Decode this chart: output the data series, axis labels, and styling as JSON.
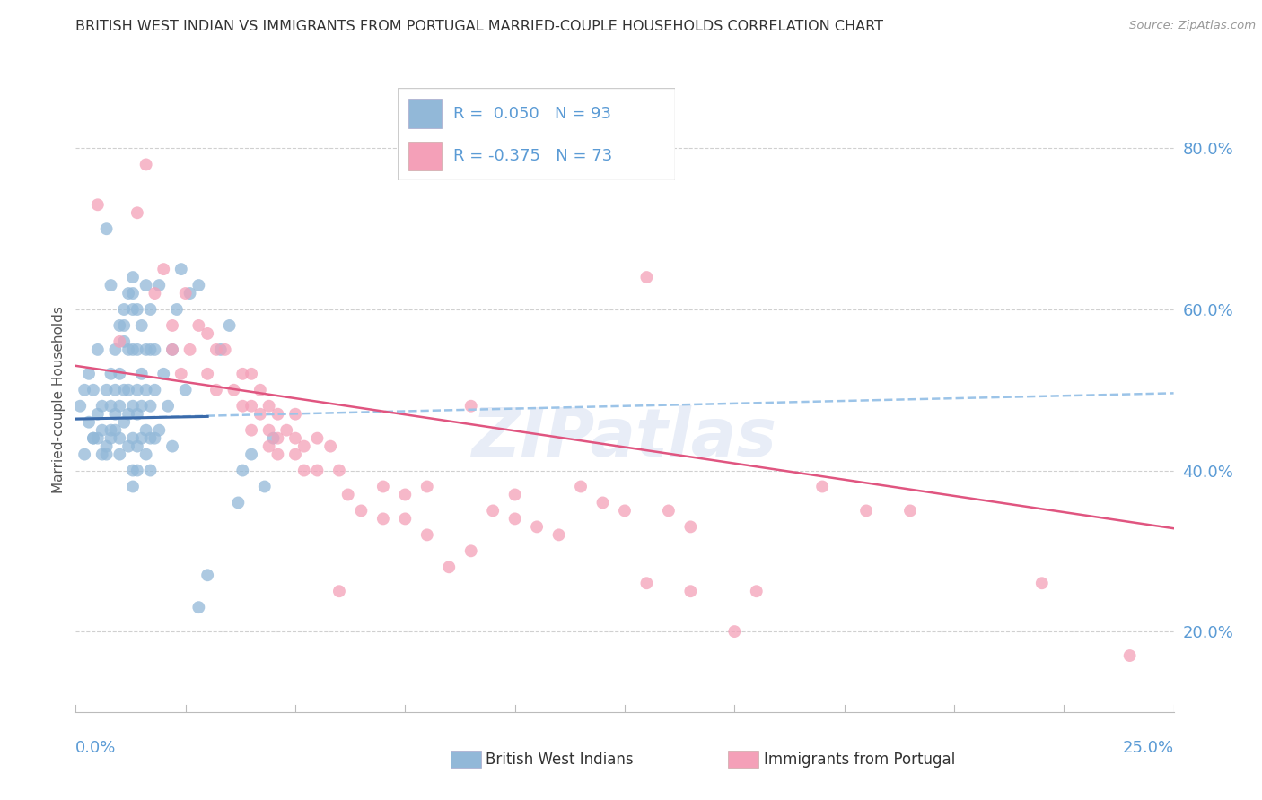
{
  "title": "BRITISH WEST INDIAN VS IMMIGRANTS FROM PORTUGAL MARRIED-COUPLE HOUSEHOLDS CORRELATION CHART",
  "source": "Source: ZipAtlas.com",
  "ylabel": "Married-couple Households",
  "ytick_values": [
    0.2,
    0.4,
    0.6,
    0.8
  ],
  "xmin": 0.0,
  "xmax": 0.25,
  "ymin": 0.1,
  "ymax": 0.875,
  "blue_color": "#92b8d8",
  "pink_color": "#f4a0b8",
  "blue_line_color": "#3a6aaa",
  "pink_line_color": "#e05580",
  "dashed_line_color": "#9cc4e8",
  "axis_label_color": "#5b9bd5",
  "title_color": "#333333",
  "watermark": "ZIPatlas",
  "blue_scatter": [
    [
      0.001,
      0.48
    ],
    [
      0.002,
      0.5
    ],
    [
      0.002,
      0.42
    ],
    [
      0.003,
      0.52
    ],
    [
      0.003,
      0.46
    ],
    [
      0.004,
      0.44
    ],
    [
      0.004,
      0.5
    ],
    [
      0.004,
      0.44
    ],
    [
      0.005,
      0.47
    ],
    [
      0.005,
      0.44
    ],
    [
      0.005,
      0.55
    ],
    [
      0.006,
      0.48
    ],
    [
      0.006,
      0.42
    ],
    [
      0.006,
      0.45
    ],
    [
      0.007,
      0.7
    ],
    [
      0.007,
      0.43
    ],
    [
      0.007,
      0.42
    ],
    [
      0.007,
      0.5
    ],
    [
      0.008,
      0.63
    ],
    [
      0.008,
      0.52
    ],
    [
      0.008,
      0.48
    ],
    [
      0.008,
      0.45
    ],
    [
      0.008,
      0.44
    ],
    [
      0.009,
      0.55
    ],
    [
      0.009,
      0.5
    ],
    [
      0.009,
      0.47
    ],
    [
      0.009,
      0.45
    ],
    [
      0.01,
      0.58
    ],
    [
      0.01,
      0.52
    ],
    [
      0.01,
      0.48
    ],
    [
      0.01,
      0.44
    ],
    [
      0.01,
      0.42
    ],
    [
      0.011,
      0.6
    ],
    [
      0.011,
      0.58
    ],
    [
      0.011,
      0.56
    ],
    [
      0.011,
      0.5
    ],
    [
      0.011,
      0.46
    ],
    [
      0.012,
      0.62
    ],
    [
      0.012,
      0.55
    ],
    [
      0.012,
      0.5
    ],
    [
      0.012,
      0.47
    ],
    [
      0.012,
      0.43
    ],
    [
      0.013,
      0.64
    ],
    [
      0.013,
      0.62
    ],
    [
      0.013,
      0.6
    ],
    [
      0.013,
      0.55
    ],
    [
      0.013,
      0.48
    ],
    [
      0.013,
      0.44
    ],
    [
      0.013,
      0.4
    ],
    [
      0.013,
      0.38
    ],
    [
      0.014,
      0.6
    ],
    [
      0.014,
      0.55
    ],
    [
      0.014,
      0.5
    ],
    [
      0.014,
      0.47
    ],
    [
      0.014,
      0.43
    ],
    [
      0.014,
      0.4
    ],
    [
      0.015,
      0.58
    ],
    [
      0.015,
      0.52
    ],
    [
      0.015,
      0.48
    ],
    [
      0.015,
      0.44
    ],
    [
      0.016,
      0.63
    ],
    [
      0.016,
      0.55
    ],
    [
      0.016,
      0.5
    ],
    [
      0.016,
      0.45
    ],
    [
      0.016,
      0.42
    ],
    [
      0.017,
      0.6
    ],
    [
      0.017,
      0.55
    ],
    [
      0.017,
      0.48
    ],
    [
      0.017,
      0.44
    ],
    [
      0.017,
      0.4
    ],
    [
      0.018,
      0.55
    ],
    [
      0.018,
      0.5
    ],
    [
      0.018,
      0.44
    ],
    [
      0.019,
      0.63
    ],
    [
      0.019,
      0.45
    ],
    [
      0.02,
      0.52
    ],
    [
      0.021,
      0.48
    ],
    [
      0.022,
      0.43
    ],
    [
      0.022,
      0.55
    ],
    [
      0.023,
      0.6
    ],
    [
      0.024,
      0.65
    ],
    [
      0.025,
      0.5
    ],
    [
      0.026,
      0.62
    ],
    [
      0.028,
      0.63
    ],
    [
      0.03,
      0.27
    ],
    [
      0.033,
      0.55
    ],
    [
      0.035,
      0.58
    ],
    [
      0.037,
      0.36
    ],
    [
      0.038,
      0.4
    ],
    [
      0.04,
      0.42
    ],
    [
      0.043,
      0.38
    ],
    [
      0.045,
      0.44
    ],
    [
      0.028,
      0.23
    ]
  ],
  "pink_scatter": [
    [
      0.005,
      0.73
    ],
    [
      0.01,
      0.56
    ],
    [
      0.014,
      0.72
    ],
    [
      0.018,
      0.62
    ],
    [
      0.02,
      0.65
    ],
    [
      0.022,
      0.58
    ],
    [
      0.022,
      0.55
    ],
    [
      0.024,
      0.52
    ],
    [
      0.026,
      0.55
    ],
    [
      0.028,
      0.58
    ],
    [
      0.03,
      0.57
    ],
    [
      0.03,
      0.52
    ],
    [
      0.032,
      0.55
    ],
    [
      0.032,
      0.5
    ],
    [
      0.034,
      0.55
    ],
    [
      0.036,
      0.5
    ],
    [
      0.038,
      0.52
    ],
    [
      0.038,
      0.48
    ],
    [
      0.04,
      0.52
    ],
    [
      0.04,
      0.48
    ],
    [
      0.04,
      0.45
    ],
    [
      0.042,
      0.5
    ],
    [
      0.042,
      0.47
    ],
    [
      0.044,
      0.48
    ],
    [
      0.044,
      0.45
    ],
    [
      0.044,
      0.43
    ],
    [
      0.046,
      0.47
    ],
    [
      0.046,
      0.44
    ],
    [
      0.046,
      0.42
    ],
    [
      0.048,
      0.45
    ],
    [
      0.05,
      0.47
    ],
    [
      0.05,
      0.44
    ],
    [
      0.05,
      0.42
    ],
    [
      0.052,
      0.43
    ],
    [
      0.052,
      0.4
    ],
    [
      0.055,
      0.44
    ],
    [
      0.055,
      0.4
    ],
    [
      0.058,
      0.43
    ],
    [
      0.06,
      0.4
    ],
    [
      0.062,
      0.37
    ],
    [
      0.065,
      0.35
    ],
    [
      0.07,
      0.38
    ],
    [
      0.07,
      0.34
    ],
    [
      0.075,
      0.37
    ],
    [
      0.075,
      0.34
    ],
    [
      0.08,
      0.38
    ],
    [
      0.08,
      0.32
    ],
    [
      0.085,
      0.28
    ],
    [
      0.09,
      0.48
    ],
    [
      0.09,
      0.3
    ],
    [
      0.095,
      0.35
    ],
    [
      0.1,
      0.34
    ],
    [
      0.1,
      0.37
    ],
    [
      0.105,
      0.33
    ],
    [
      0.11,
      0.32
    ],
    [
      0.115,
      0.38
    ],
    [
      0.12,
      0.36
    ],
    [
      0.125,
      0.35
    ],
    [
      0.13,
      0.64
    ],
    [
      0.135,
      0.35
    ],
    [
      0.14,
      0.33
    ],
    [
      0.15,
      0.2
    ],
    [
      0.155,
      0.25
    ],
    [
      0.016,
      0.78
    ],
    [
      0.025,
      0.62
    ],
    [
      0.17,
      0.38
    ],
    [
      0.18,
      0.35
    ],
    [
      0.19,
      0.35
    ],
    [
      0.22,
      0.26
    ],
    [
      0.24,
      0.17
    ],
    [
      0.14,
      0.25
    ],
    [
      0.06,
      0.25
    ],
    [
      0.13,
      0.26
    ]
  ],
  "blue_trend": [
    0.0,
    0.25,
    0.464,
    0.496
  ],
  "pink_trend": [
    0.0,
    0.25,
    0.53,
    0.328
  ],
  "blue_solid_trend": [
    0.0,
    0.03,
    0.464,
    0.467
  ]
}
